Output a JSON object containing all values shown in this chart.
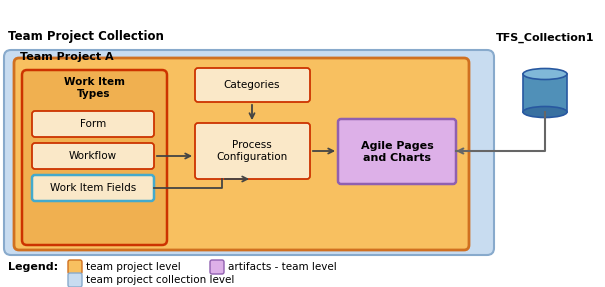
{
  "title": "Team Project Collection",
  "team_project_label": "Team Project A",
  "tfs_label": "TFS_Collection1",
  "legend_label": "Legend:",
  "legend_items": [
    {
      "color": "#F8C060",
      "border": "#D07020",
      "text": "team project level"
    },
    {
      "color": "#DDB0E8",
      "border": "#9060B0",
      "text": "artifacts - team level"
    },
    {
      "color": "#C8DCF0",
      "border": "#88AACC",
      "text": "team project collection level"
    }
  ],
  "outer_bg": "#C8DCF0",
  "outer_border": "#88AACC",
  "inner_bg": "#F8C060",
  "inner_border": "#D07020",
  "wit_group_bg": "#F0B050",
  "wit_group_border": "#CC3300",
  "box_cream_bg": "#FAE8C8",
  "box_red_border": "#CC3300",
  "box_wif_border": "#44AACC",
  "categories_bg": "#FAE8C8",
  "categories_border": "#CC3300",
  "proc_bg": "#FAE8C8",
  "proc_border": "#CC3300",
  "agile_bg": "#DDB0E8",
  "agile_border": "#9060B0",
  "arrow_color": "#444444",
  "tfs_line_color": "#666666",
  "db_body": "#5090B8",
  "db_top": "#80B8D8",
  "db_bottom": "#3870A0",
  "db_border": "#2858A0"
}
